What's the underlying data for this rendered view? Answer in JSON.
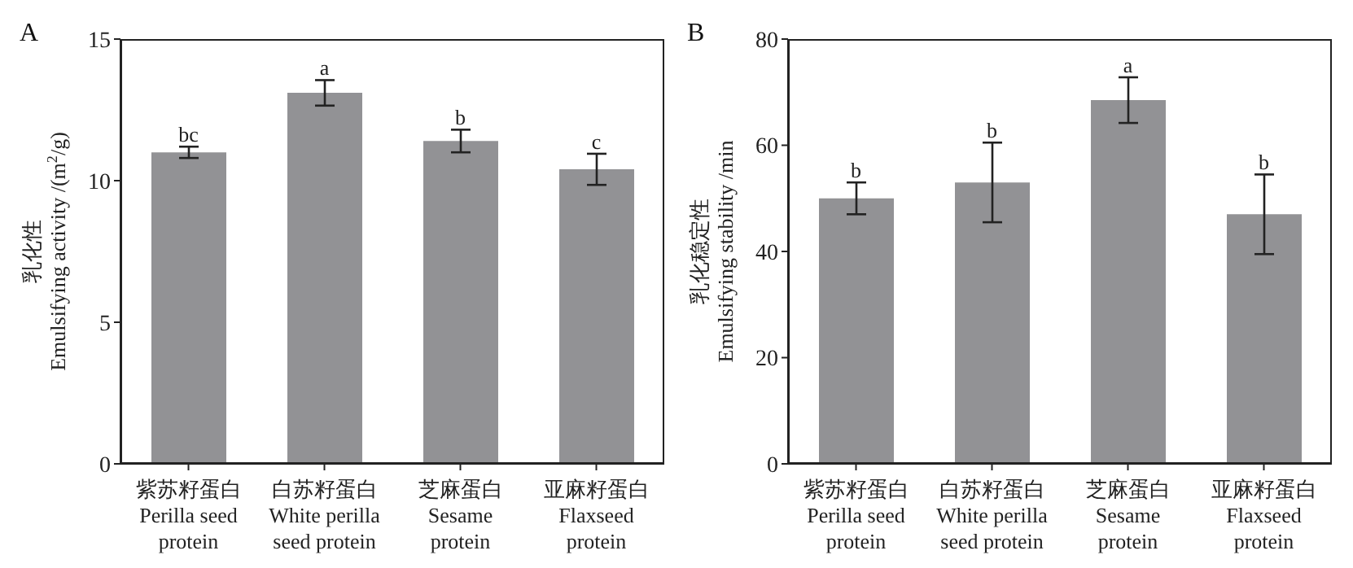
{
  "chart_data": [
    {
      "type": "bar",
      "title": "A",
      "ylabel": "乳化性\nEmulsifying activity /(m$^{2}$/g)",
      "categories": [
        "紫苏籽蛋白\nPerilla seed\nprotein",
        "白苏籽蛋白\nWhite perilla\nseed protein",
        "芝麻蛋白\nSesame\nprotein",
        "亚麻籽蛋白\nFlaxseed\nprotein"
      ],
      "values": [
        11.0,
        13.1,
        11.4,
        10.4
      ],
      "errors": [
        0.2,
        0.45,
        0.4,
        0.55
      ],
      "color": "#929295",
      "ylim": [
        0,
        15
      ],
      "yticks": [
        0,
        5,
        10,
        15
      ],
      "grid": false,
      "legend": false,
      "annotations": [
        {
          "text": "bc",
          "x": "紫苏籽蛋白\nPerilla seed\nprotein",
          "y": 11.2
        },
        {
          "text": "a",
          "x": "白苏籽蛋白\nWhite perilla\nseed protein",
          "y": 13.55
        },
        {
          "text": "b",
          "x": "芝麻蛋白\nSesame\nprotein",
          "y": 11.8
        },
        {
          "text": "c",
          "x": "亚麻籽蛋白\nFlaxseed\nprotein",
          "y": 10.95
        }
      ]
    },
    {
      "type": "bar",
      "title": "B",
      "ylabel": "乳化稳定性\nEmulsifying stability /min",
      "categories": [
        "紫苏籽蛋白\nPerilla seed\nprotein",
        "白苏籽蛋白\nWhite perilla\nseed protein",
        "芝麻蛋白\nSesame\nprotein",
        "亚麻籽蛋白\nFlaxseed\nprotein"
      ],
      "values": [
        50,
        53,
        68.5,
        47
      ],
      "errors": [
        3,
        7.5,
        4.3,
        7.5
      ],
      "color": "#929295",
      "ylim": [
        0,
        80
      ],
      "yticks": [
        0,
        20,
        40,
        60,
        80
      ],
      "grid": false,
      "legend": false,
      "annotations": [
        {
          "text": "b",
          "x": "紫苏籽蛋白\nPerilla seed\nprotein",
          "y": 53
        },
        {
          "text": "b",
          "x": "白苏籽蛋白\nWhite perilla\nseed protein",
          "y": 60.5
        },
        {
          "text": "a",
          "x": "芝麻蛋白\nSesame\nprotein",
          "y": 72.8
        },
        {
          "text": "b",
          "x": "亚麻籽蛋白\nFlaxseed\nprotein",
          "y": 54.5
        }
      ]
    }
  ]
}
